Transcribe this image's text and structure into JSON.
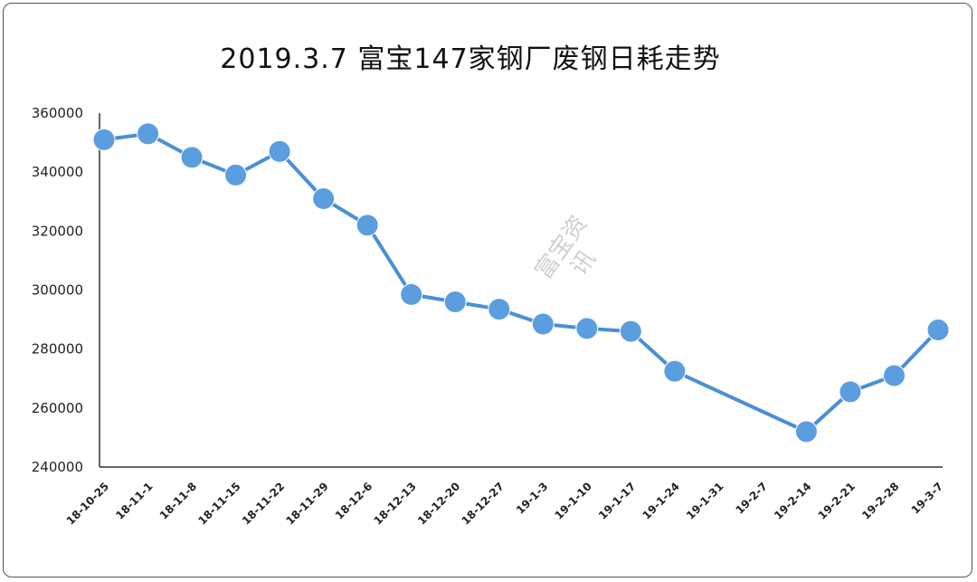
{
  "chart_data": {
    "type": "line",
    "title": "2019.3.7  富宝147家钢厂废钢日耗走势",
    "watermark": "富宝资讯",
    "categories": [
      "18-10-25",
      "18-11-1",
      "18-11-8",
      "18-11-15",
      "18-11-22",
      "18-11-29",
      "18-12-6",
      "18-12-13",
      "18-12-20",
      "18-12-27",
      "19-1-3",
      "19-1-10",
      "19-1-17",
      "19-1-24",
      "19-1-31",
      "19-2-7",
      "19-2-14",
      "19-2-21",
      "19-2-28",
      "19-3-7"
    ],
    "series": [
      {
        "values": [
          351000,
          353000,
          345000,
          339000,
          347000,
          331000,
          322000,
          298500,
          296000,
          293500,
          288500,
          287000,
          286000,
          272500,
          null,
          null,
          252000,
          265500,
          271000,
          286500
        ]
      }
    ],
    "ylim": [
      240000,
      360000
    ],
    "yticks": [
      "240000",
      "260000",
      "280000",
      "300000",
      "320000",
      "340000",
      "360000"
    ],
    "line_color": "#4a8fd6",
    "marker_color": "#5b9ee0",
    "axis_color": "#333333"
  }
}
